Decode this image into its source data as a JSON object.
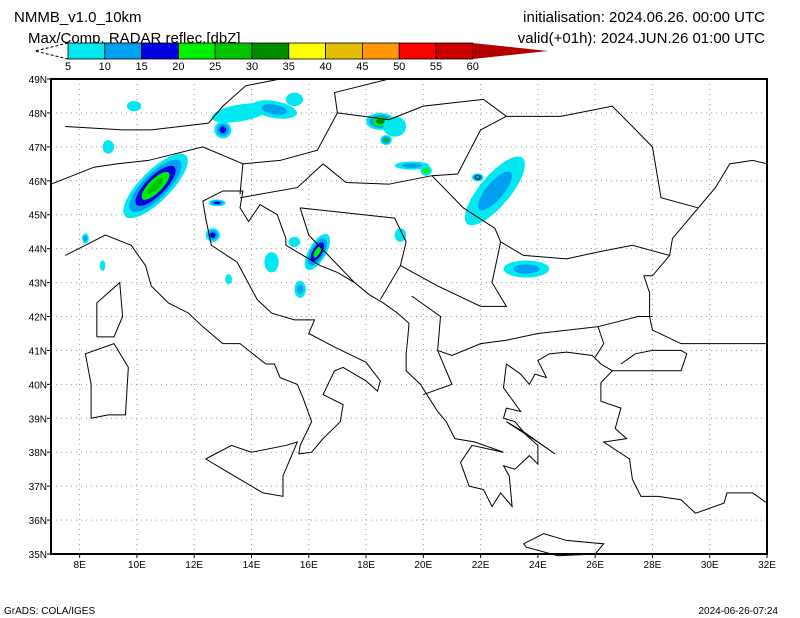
{
  "header": {
    "model": "NMMB_v1.0_10km",
    "field": "Max/Comp. RADAR reflec.[dbZ]",
    "initialisation": "initialisation: 2024.06.26. 00:00 UTC",
    "valid": "valid(+01h): 2024.JUN.26 01:00 UTC"
  },
  "colorbar": {
    "labels": [
      "5",
      "10",
      "15",
      "20",
      "25",
      "30",
      "35",
      "40",
      "45",
      "50",
      "55",
      "60"
    ],
    "colors": [
      "#00e8f0",
      "#00a0f0",
      "#0000e0",
      "#00f000",
      "#00c400",
      "#008c00",
      "#ffff00",
      "#e6be00",
      "#ff9600",
      "#ff0000",
      "#c80000",
      "#b40000"
    ]
  },
  "axes": {
    "lat_labels": [
      "35N",
      "36N",
      "37N",
      "38N",
      "39N",
      "40N",
      "41N",
      "42N",
      "43N",
      "44N",
      "45N",
      "46N",
      "47N",
      "48N",
      "49N"
    ],
    "lon_labels": [
      "8E",
      "10E",
      "12E",
      "14E",
      "16E",
      "18E",
      "20E",
      "22E",
      "24E",
      "26E",
      "28E",
      "30E",
      "32E"
    ]
  },
  "footer": {
    "software": "GrADS: COLA/IGES",
    "timestamp": "2024-06-26-07:24"
  }
}
